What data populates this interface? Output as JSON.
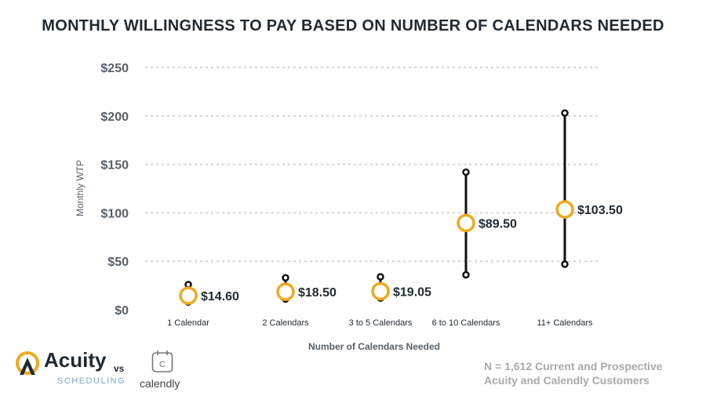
{
  "chart_data": {
    "type": "range-dot",
    "title": "MONTHLY WILLINGNESS TO PAY BASED ON NUMBER OF CALENDARS NEEDED",
    "xlabel": "Number of Calendars Needed",
    "ylabel": "Monthly WTP",
    "ylim": [
      0,
      250
    ],
    "yticks": [
      0,
      50,
      100,
      150,
      200,
      250
    ],
    "ytick_labels": [
      "$0",
      "$50",
      "$100",
      "$150",
      "$200",
      "$250"
    ],
    "grid": true,
    "categories": [
      "1 Calendar",
      "2 Calendars",
      "3 to 5 Calendars",
      "6 to 10 Calendars",
      "11+ Calendars"
    ],
    "values": [
      14.6,
      18.5,
      19.05,
      89.5,
      103.5
    ],
    "value_labels": [
      "$14.60",
      "$18.50",
      "$19.05",
      "$89.50",
      "$103.50"
    ],
    "low": [
      8,
      11,
      12,
      36,
      47
    ],
    "high": [
      26,
      33,
      34,
      142,
      203
    ],
    "colors": {
      "point": "#f0a81c",
      "range": "#111111",
      "grid": "#d4d4d4"
    }
  },
  "branding": {
    "acuity_name": "Acuity",
    "acuity_sub": "SCHEDULING",
    "vs": "vs",
    "calendly_name": "calendly",
    "calendly_icon_letter": "C"
  },
  "footnote": {
    "line1": "N = 1,612 Current and Prospective",
    "line2": "Acuity and Calendly Customers"
  }
}
